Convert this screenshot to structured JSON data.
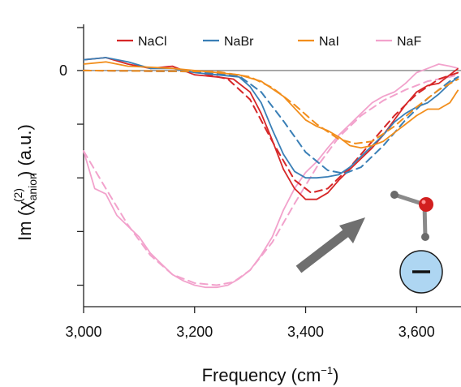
{
  "chart_data": {
    "type": "line",
    "xlabel": "Frequency (cm⁻¹)",
    "ylabel": "Im (χ(2)anion) (a.u.)",
    "xlim": [
      3000,
      3680
    ],
    "ylim": [
      -2.2,
      0.43
    ],
    "x_ticks": [
      3000,
      3200,
      3400,
      3600
    ],
    "x_tick_labels": [
      "3,000",
      "3,200",
      "3,400",
      "3,600"
    ],
    "y_tick_labels": [
      "0"
    ],
    "zero_line": true,
    "grid": false,
    "legend_position": "top",
    "series": [
      {
        "name": "NaCl",
        "color": "#d62728",
        "measured": [
          [
            3000,
            0.1
          ],
          [
            3040,
            0.12
          ],
          [
            3080,
            0.06
          ],
          [
            3120,
            0.02
          ],
          [
            3160,
            0.04
          ],
          [
            3200,
            -0.04
          ],
          [
            3240,
            -0.06
          ],
          [
            3270,
            -0.08
          ],
          [
            3300,
            -0.2
          ],
          [
            3320,
            -0.4
          ],
          [
            3340,
            -0.65
          ],
          [
            3360,
            -0.92
          ],
          [
            3380,
            -1.1
          ],
          [
            3400,
            -1.2
          ],
          [
            3420,
            -1.2
          ],
          [
            3440,
            -1.14
          ],
          [
            3460,
            -1.02
          ],
          [
            3480,
            -0.92
          ],
          [
            3500,
            -0.82
          ],
          [
            3520,
            -0.72
          ],
          [
            3540,
            -0.6
          ],
          [
            3560,
            -0.46
          ],
          [
            3580,
            -0.32
          ],
          [
            3600,
            -0.2
          ],
          [
            3620,
            -0.14
          ],
          [
            3640,
            -0.12
          ],
          [
            3660,
            -0.04
          ],
          [
            3675,
            0.02
          ]
        ],
        "fit": [
          [
            3000,
            0
          ],
          [
            3200,
            -0.01
          ],
          [
            3260,
            -0.08
          ],
          [
            3300,
            -0.27
          ],
          [
            3340,
            -0.66
          ],
          [
            3380,
            -1.02
          ],
          [
            3410,
            -1.14
          ],
          [
            3440,
            -1.1
          ],
          [
            3480,
            -0.9
          ],
          [
            3520,
            -0.66
          ],
          [
            3560,
            -0.42
          ],
          [
            3600,
            -0.22
          ],
          [
            3640,
            -0.08
          ],
          [
            3675,
            -0.02
          ]
        ]
      },
      {
        "name": "NaBr",
        "color": "#3a7fb6",
        "measured": [
          [
            3000,
            0.1
          ],
          [
            3040,
            0.12
          ],
          [
            3080,
            0.08
          ],
          [
            3120,
            0.02
          ],
          [
            3160,
            0.02
          ],
          [
            3200,
            -0.02
          ],
          [
            3240,
            -0.04
          ],
          [
            3280,
            -0.06
          ],
          [
            3300,
            -0.15
          ],
          [
            3320,
            -0.3
          ],
          [
            3340,
            -0.55
          ],
          [
            3360,
            -0.78
          ],
          [
            3380,
            -0.94
          ],
          [
            3400,
            -1
          ],
          [
            3420,
            -1
          ],
          [
            3440,
            -0.99
          ],
          [
            3460,
            -0.97
          ],
          [
            3480,
            -0.9
          ],
          [
            3500,
            -0.8
          ],
          [
            3520,
            -0.7
          ],
          [
            3540,
            -0.6
          ],
          [
            3560,
            -0.48
          ],
          [
            3580,
            -0.4
          ],
          [
            3600,
            -0.34
          ],
          [
            3620,
            -0.3
          ],
          [
            3640,
            -0.22
          ],
          [
            3660,
            -0.12
          ],
          [
            3675,
            -0.06
          ]
        ],
        "fit": [
          [
            3000,
            0
          ],
          [
            3200,
            -0.01
          ],
          [
            3280,
            -0.05
          ],
          [
            3320,
            -0.2
          ],
          [
            3360,
            -0.47
          ],
          [
            3400,
            -0.76
          ],
          [
            3440,
            -0.93
          ],
          [
            3470,
            -0.96
          ],
          [
            3500,
            -0.9
          ],
          [
            3540,
            -0.7
          ],
          [
            3580,
            -0.46
          ],
          [
            3620,
            -0.26
          ],
          [
            3660,
            -0.1
          ],
          [
            3675,
            -0.06
          ]
        ]
      },
      {
        "name": "NaI",
        "color": "#f28e1c",
        "measured": [
          [
            3000,
            0.06
          ],
          [
            3040,
            0.08
          ],
          [
            3080,
            0.04
          ],
          [
            3120,
            0.03
          ],
          [
            3160,
            0.02
          ],
          [
            3200,
            0
          ],
          [
            3240,
            -0.02
          ],
          [
            3280,
            -0.04
          ],
          [
            3320,
            -0.1
          ],
          [
            3360,
            -0.24
          ],
          [
            3400,
            -0.46
          ],
          [
            3420,
            -0.52
          ],
          [
            3440,
            -0.56
          ],
          [
            3460,
            -0.62
          ],
          [
            3480,
            -0.7
          ],
          [
            3500,
            -0.72
          ],
          [
            3520,
            -0.7
          ],
          [
            3540,
            -0.66
          ],
          [
            3560,
            -0.58
          ],
          [
            3580,
            -0.5
          ],
          [
            3600,
            -0.42
          ],
          [
            3620,
            -0.36
          ],
          [
            3640,
            -0.36
          ],
          [
            3660,
            -0.3
          ],
          [
            3675,
            -0.18
          ]
        ],
        "fit": [
          [
            3000,
            0
          ],
          [
            3240,
            -0.01
          ],
          [
            3300,
            -0.06
          ],
          [
            3340,
            -0.16
          ],
          [
            3380,
            -0.32
          ],
          [
            3420,
            -0.5
          ],
          [
            3460,
            -0.64
          ],
          [
            3490,
            -0.68
          ],
          [
            3520,
            -0.66
          ],
          [
            3560,
            -0.52
          ],
          [
            3600,
            -0.34
          ],
          [
            3640,
            -0.18
          ],
          [
            3675,
            -0.08
          ]
        ]
      },
      {
        "name": "NaF",
        "color": "#f2a2cc",
        "measured": [
          [
            3000,
            -0.75
          ],
          [
            3020,
            -1.1
          ],
          [
            3040,
            -1.15
          ],
          [
            3060,
            -1.35
          ],
          [
            3080,
            -1.45
          ],
          [
            3100,
            -1.55
          ],
          [
            3120,
            -1.7
          ],
          [
            3140,
            -1.8
          ],
          [
            3160,
            -1.9
          ],
          [
            3180,
            -1.96
          ],
          [
            3200,
            -2
          ],
          [
            3220,
            -2.02
          ],
          [
            3240,
            -2.02
          ],
          [
            3260,
            -2
          ],
          [
            3280,
            -1.94
          ],
          [
            3300,
            -1.86
          ],
          [
            3320,
            -1.72
          ],
          [
            3340,
            -1.55
          ],
          [
            3360,
            -1.3
          ],
          [
            3380,
            -1.1
          ],
          [
            3400,
            -0.95
          ],
          [
            3420,
            -0.85
          ],
          [
            3440,
            -0.72
          ],
          [
            3460,
            -0.6
          ],
          [
            3480,
            -0.5
          ],
          [
            3500,
            -0.4
          ],
          [
            3520,
            -0.3
          ],
          [
            3540,
            -0.24
          ],
          [
            3560,
            -0.2
          ],
          [
            3580,
            -0.12
          ],
          [
            3600,
            -0.02
          ],
          [
            3620,
            0.02
          ],
          [
            3640,
            0.06
          ],
          [
            3660,
            0.04
          ],
          [
            3675,
            0.02
          ]
        ],
        "fit": [
          [
            3000,
            -0.75
          ],
          [
            3040,
            -1.1
          ],
          [
            3080,
            -1.44
          ],
          [
            3120,
            -1.72
          ],
          [
            3160,
            -1.9
          ],
          [
            3200,
            -1.98
          ],
          [
            3240,
            -2
          ],
          [
            3270,
            -1.97
          ],
          [
            3300,
            -1.86
          ],
          [
            3340,
            -1.6
          ],
          [
            3380,
            -1.24
          ],
          [
            3420,
            -0.9
          ],
          [
            3460,
            -0.62
          ],
          [
            3500,
            -0.42
          ],
          [
            3540,
            -0.28
          ],
          [
            3580,
            -0.18
          ],
          [
            3620,
            -0.1
          ],
          [
            3660,
            -0.06
          ],
          [
            3675,
            -0.04
          ]
        ]
      }
    ]
  }
}
